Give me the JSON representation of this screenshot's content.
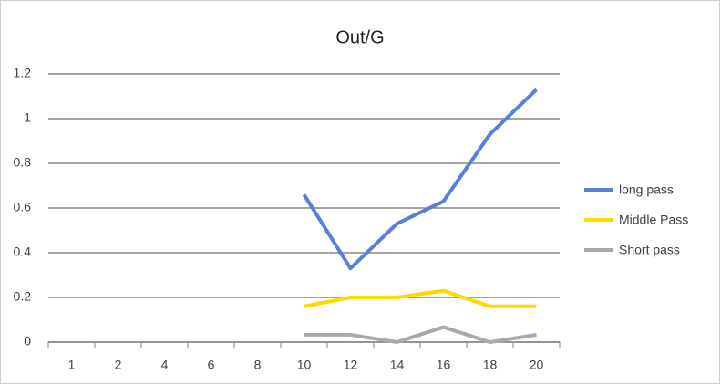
{
  "chart_data": {
    "type": "line",
    "title": "Out/G",
    "categories": [
      "1",
      "2",
      "4",
      "6",
      "8",
      "10",
      "12",
      "14",
      "16",
      "18",
      "20"
    ],
    "series": [
      {
        "name": "long pass",
        "color": "#5b7fd6",
        "values": [
          null,
          null,
          null,
          null,
          null,
          0.66,
          0.33,
          0.53,
          0.63,
          0.93,
          1.13
        ]
      },
      {
        "name": "Middle Pass",
        "color": "#ffd800",
        "values": [
          null,
          null,
          null,
          null,
          null,
          0.16,
          0.2,
          0.2,
          0.23,
          0.16,
          0.16
        ]
      },
      {
        "name": "Short pass",
        "color": "#a9a9a9",
        "values": [
          null,
          null,
          null,
          null,
          null,
          0.033,
          0.033,
          0,
          0.067,
          0,
          0.033
        ]
      }
    ],
    "ylim": [
      0,
      1.2
    ],
    "yticks": [
      0,
      0.2,
      0.4,
      0.6,
      0.8,
      1,
      1.2
    ],
    "grid": true,
    "legend": "right"
  }
}
